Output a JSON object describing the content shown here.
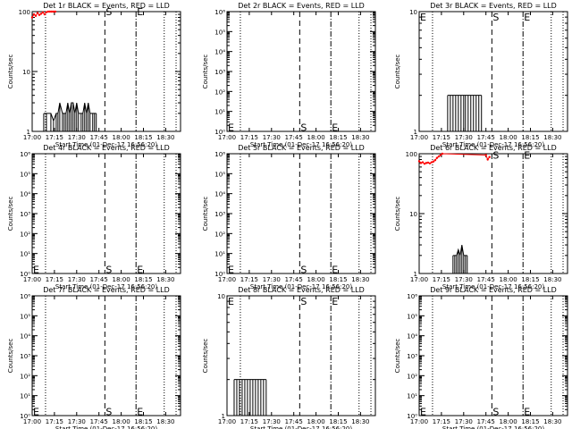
{
  "figure_start_time": "Start Time (01-Dec-17 16:56:20)",
  "chart_data": [
    {
      "type": "line",
      "title": "Det 1r BLACK = Events, RED = LLD",
      "xlabel": "Start Time (01-Dec-17 16:56:20)",
      "ylabel": "Counts/sec",
      "scale": "log",
      "ylim": [
        1,
        100
      ],
      "yticks": [
        {
          "v": 1,
          "t": "1"
        },
        {
          "v": 10,
          "t": "10"
        },
        {
          "v": 100,
          "t": "100"
        }
      ],
      "x_ticks": [
        "17:00",
        "17:15",
        "17:30",
        "17:45",
        "18:00",
        "18:15",
        "18:30"
      ],
      "markers": [
        {
          "letter": "S",
          "y": 100
        },
        {
          "letter": "E",
          "y": 100
        }
      ],
      "series": [
        {
          "color": "#000000",
          "style": "spikes",
          "x": [
            17.13,
            17.16,
            17.21,
            17.24,
            17.27,
            17.29,
            17.31,
            17.34,
            17.36,
            17.38,
            17.4,
            17.42,
            17.44,
            17.46,
            17.48,
            17.5,
            17.52,
            17.55,
            17.57,
            17.59,
            17.61,
            17.63,
            17.65,
            17.68,
            17.7,
            17.72
          ],
          "y": [
            2,
            2,
            2,
            1.5,
            2,
            2,
            3,
            2,
            2,
            2,
            3,
            2,
            3,
            3,
            2,
            3,
            2,
            2,
            2,
            3,
            2,
            3,
            2,
            2,
            2,
            2
          ]
        },
        {
          "color": "#ff0000",
          "style": "dots",
          "x": [
            17.0,
            17.02,
            17.04,
            17.06,
            17.08,
            17.1,
            17.12,
            17.14,
            17.16,
            17.18,
            17.2,
            17.22,
            17.24,
            17.26
          ],
          "y": [
            80,
            90,
            85,
            95,
            88,
            92,
            97,
            90,
            98,
            100,
            100,
            100,
            100,
            100
          ]
        }
      ]
    },
    {
      "type": "line",
      "title": "Det 2r BLACK = Events, RED = LLD",
      "xlabel": "Start Time (01-Dec-17 16:56:20)",
      "ylabel": "Counts/sec",
      "scale": "log",
      "ylim": [
        1,
        1000000
      ],
      "yticks": [
        {
          "v": 1,
          "t": "10⁰"
        },
        {
          "v": 10,
          "t": "10¹"
        },
        {
          "v": 100,
          "t": "10²"
        },
        {
          "v": 1000,
          "t": "10³"
        },
        {
          "v": 10000,
          "t": "10⁴"
        },
        {
          "v": 100000,
          "t": "10⁵"
        },
        {
          "v": 1000000,
          "t": "10⁶"
        }
      ],
      "x_ticks": [
        "17:00",
        "17:15",
        "17:30",
        "17:45",
        "18:00",
        "18:15",
        "18:30"
      ],
      "markers": [
        {
          "letter": "E",
          "y": 1.6,
          "pos": "left"
        },
        {
          "letter": "S",
          "y": 1.6
        },
        {
          "letter": "E",
          "y": 1.6
        }
      ],
      "series": []
    },
    {
      "type": "line",
      "title": "Det 3r BLACK = Events, RED = LLD",
      "xlabel": "Start Time (01-Dec-17 16:56:20)",
      "ylabel": "Counts/sec",
      "scale": "log",
      "ylim": [
        1,
        10
      ],
      "yticks": [
        {
          "v": 1,
          "t": "1"
        },
        {
          "v": 10,
          "t": "10"
        }
      ],
      "x_ticks": [
        "17:00",
        "17:15",
        "17:30",
        "17:45",
        "18:00",
        "18:15",
        "18:30"
      ],
      "markers": [
        {
          "letter": "E",
          "y": 9,
          "pos": "left"
        },
        {
          "letter": "S",
          "y": 9
        },
        {
          "letter": "E",
          "y": 9
        }
      ],
      "series": [
        {
          "color": "#000000",
          "style": "spikes",
          "x": [
            17.32,
            17.35,
            17.38,
            17.41,
            17.44,
            17.47,
            17.5,
            17.52,
            17.55,
            17.58,
            17.61,
            17.64,
            17.67,
            17.7
          ],
          "y": [
            2,
            2,
            2,
            2,
            2,
            2,
            2,
            2,
            2,
            2,
            2,
            2,
            2,
            2
          ]
        }
      ]
    },
    {
      "type": "line",
      "title": "Det 4r BLACK = Events, RED = LLD",
      "xlabel": "Start Time (01-Dec-17 16:56:20)",
      "ylabel": "Counts/sec",
      "scale": "log",
      "ylim": [
        1,
        1000000
      ],
      "yticks": [
        {
          "v": 1,
          "t": "10⁰"
        },
        {
          "v": 10,
          "t": "10¹"
        },
        {
          "v": 100,
          "t": "10²"
        },
        {
          "v": 1000,
          "t": "10³"
        },
        {
          "v": 10000,
          "t": "10⁴"
        },
        {
          "v": 100000,
          "t": "10⁵"
        },
        {
          "v": 1000000,
          "t": "10⁶"
        }
      ],
      "x_ticks": [
        "17:00",
        "17:15",
        "17:30",
        "17:45",
        "18:00",
        "18:15",
        "18:30"
      ],
      "markers": [
        {
          "letter": "E",
          "y": 1.6,
          "pos": "left"
        },
        {
          "letter": "S",
          "y": 1.6
        },
        {
          "letter": "E",
          "y": 1.6
        }
      ],
      "series": []
    },
    {
      "type": "line",
      "title": "Det 5r BLACK = Events, RED = LLD",
      "xlabel": "Start Time (01-Dec-17 16:56:20)",
      "ylabel": "Counts/sec",
      "scale": "log",
      "ylim": [
        1,
        1000000
      ],
      "yticks": [
        {
          "v": 1,
          "t": "10⁰"
        },
        {
          "v": 10,
          "t": "10¹"
        },
        {
          "v": 100,
          "t": "10²"
        },
        {
          "v": 1000,
          "t": "10³"
        },
        {
          "v": 10000,
          "t": "10⁴"
        },
        {
          "v": 100000,
          "t": "10⁵"
        },
        {
          "v": 1000000,
          "t": "10⁶"
        }
      ],
      "x_ticks": [
        "17:00",
        "17:15",
        "17:30",
        "17:45",
        "18:00",
        "18:15",
        "18:30"
      ],
      "markers": [
        {
          "letter": "E",
          "y": 1.6,
          "pos": "left"
        },
        {
          "letter": "S",
          "y": 1.6
        },
        {
          "letter": "E",
          "y": 1.6
        }
      ],
      "series": []
    },
    {
      "type": "line",
      "title": "Det 6r BLACK = Events, RED = LLD",
      "xlabel": "Start Time (01-Dec-17 16:56:20)",
      "ylabel": "Counts/sec",
      "scale": "log",
      "ylim": [
        1,
        100
      ],
      "yticks": [
        {
          "v": 1,
          "t": "1"
        },
        {
          "v": 10,
          "t": "10"
        },
        {
          "v": 100,
          "t": "100"
        }
      ],
      "x_ticks": [
        "17:00",
        "17:15",
        "17:30",
        "17:45",
        "18:00",
        "18:15",
        "18:30"
      ],
      "markers": [
        {
          "letter": "S",
          "y": 95
        },
        {
          "letter": "E",
          "y": 95
        }
      ],
      "series": [
        {
          "color": "#000000",
          "style": "spikes",
          "x": [
            17.38,
            17.4,
            17.42,
            17.44,
            17.46,
            17.48,
            17.5,
            17.52,
            17.54
          ],
          "y": [
            2,
            2,
            2,
            2.5,
            2,
            3,
            2,
            2,
            2
          ]
        },
        {
          "color": "#ff0000",
          "style": "dots",
          "x": [
            17.0,
            17.02,
            17.04,
            17.06,
            17.08,
            17.1,
            17.12,
            17.14,
            17.16,
            17.18,
            17.2,
            17.22,
            17.24,
            17.26,
            17.75,
            17.77,
            17.79
          ],
          "y": [
            75,
            70,
            72,
            68,
            70,
            71,
            69,
            72,
            74,
            78,
            85,
            90,
            95,
            100,
            95,
            80,
            88
          ]
        }
      ]
    },
    {
      "type": "line",
      "title": "Det 7r BLACK = Events, RED = LLD",
      "xlabel": "Start Time (01-Dec-17 16:56:20)",
      "ylabel": "Counts/sec",
      "scale": "log",
      "ylim": [
        1,
        1000000
      ],
      "yticks": [
        {
          "v": 1,
          "t": "10⁰"
        },
        {
          "v": 10,
          "t": "10¹"
        },
        {
          "v": 100,
          "t": "10²"
        },
        {
          "v": 1000,
          "t": "10³"
        },
        {
          "v": 10000,
          "t": "10⁴"
        },
        {
          "v": 100000,
          "t": "10⁵"
        },
        {
          "v": 1000000,
          "t": "10⁶"
        }
      ],
      "x_ticks": [
        "17:00",
        "17:15",
        "17:30",
        "17:45",
        "18:00",
        "18:15",
        "18:30"
      ],
      "markers": [
        {
          "letter": "E",
          "y": 1.6,
          "pos": "left"
        },
        {
          "letter": "S",
          "y": 1.6
        },
        {
          "letter": "E",
          "y": 1.6
        }
      ],
      "series": []
    },
    {
      "type": "line",
      "title": "Det 8r BLACK = Events, RED = LLD",
      "xlabel": "Start Time (01-Dec-17 16:56:20)",
      "ylabel": "Counts/sec",
      "scale": "log",
      "ylim": [
        1,
        10
      ],
      "yticks": [
        {
          "v": 1,
          "t": "1"
        },
        {
          "v": 10,
          "t": "10"
        }
      ],
      "x_ticks": [
        "17:00",
        "17:15",
        "17:30",
        "17:45",
        "18:00",
        "18:15",
        "18:30"
      ],
      "markers": [
        {
          "letter": "E",
          "y": 9,
          "pos": "left"
        },
        {
          "letter": "S",
          "y": 9
        },
        {
          "letter": "E",
          "y": 9
        }
      ],
      "series": [
        {
          "color": "#000000",
          "style": "spikes",
          "x": [
            17.08,
            17.11,
            17.14,
            17.17,
            17.2,
            17.23,
            17.26,
            17.29,
            17.32,
            17.35,
            17.38,
            17.41,
            17.44
          ],
          "y": [
            2,
            2,
            2,
            2,
            2,
            2,
            2,
            2,
            2,
            2,
            2,
            2,
            2
          ]
        }
      ]
    },
    {
      "type": "line",
      "title": "Det 9r BLACK = Events, RED = LLD",
      "xlabel": "Start Time (01-Dec-17 16:56:20)",
      "ylabel": "Counts/sec",
      "scale": "log",
      "ylim": [
        1,
        1000000
      ],
      "yticks": [
        {
          "v": 1,
          "t": "10⁰"
        },
        {
          "v": 10,
          "t": "10¹"
        },
        {
          "v": 100,
          "t": "10²"
        },
        {
          "v": 1000,
          "t": "10³"
        },
        {
          "v": 10000,
          "t": "10⁴"
        },
        {
          "v": 100000,
          "t": "10⁵"
        },
        {
          "v": 1000000,
          "t": "10⁶"
        }
      ],
      "x_ticks": [
        "17:00",
        "17:15",
        "17:30",
        "17:45",
        "18:00",
        "18:15",
        "18:30"
      ],
      "markers": [
        {
          "letter": "E",
          "y": 1.6,
          "pos": "left"
        },
        {
          "letter": "S",
          "y": 1.6
        },
        {
          "letter": "E",
          "y": 1.6
        }
      ],
      "series": []
    }
  ]
}
